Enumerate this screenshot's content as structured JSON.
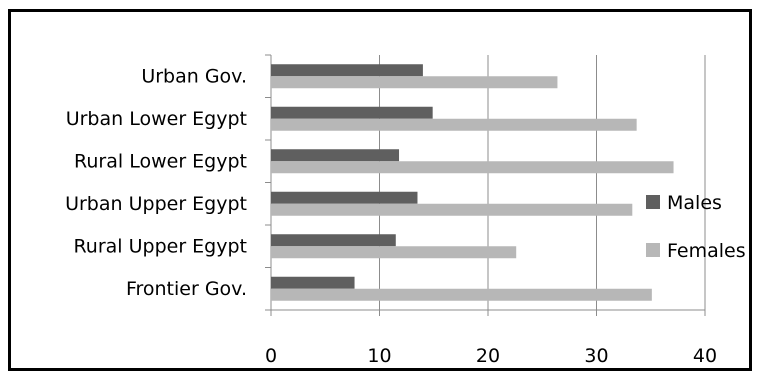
{
  "chart_data": {
    "type": "bar",
    "orientation": "horizontal",
    "categories": [
      "Urban Gov.",
      "Urban Lower Egypt",
      "Rural Lower Egypt",
      "Urban Upper Egypt",
      "Rural Upper Egypt",
      "Frontier Gov."
    ],
    "series": [
      {
        "name": "Males",
        "color": "#5f5f5f",
        "values": [
          14.0,
          14.9,
          11.8,
          13.5,
          11.5,
          7.7
        ]
      },
      {
        "name": "Females",
        "color": "#b7b7b7",
        "values": [
          26.4,
          33.7,
          37.1,
          33.3,
          22.6,
          35.1
        ]
      }
    ],
    "xlim": [
      0,
      40
    ],
    "x_ticks": [
      "0",
      "10",
      "20",
      "30",
      "40"
    ],
    "title": "",
    "xlabel": "",
    "ylabel": "",
    "grid": true,
    "legend_position": "right"
  }
}
